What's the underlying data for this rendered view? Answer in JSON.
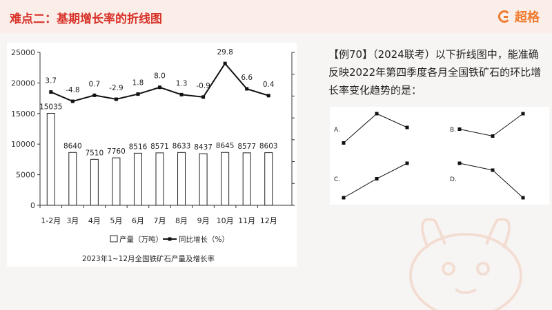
{
  "header": {
    "title": "难点二：基期增长率的折线图",
    "logo_text": "超格"
  },
  "question": {
    "text": "【例70】（2024联考）以下折线图中，能准确反映2022年第四季度各月全国铁矿石的环比增长率变化趋势的是："
  },
  "chart_data": {
    "type": "bar",
    "title": "2023年1~12月全国铁矿石产量及增长率",
    "categories": [
      "1-2月",
      "3月",
      "4月",
      "5月",
      "6月",
      "7月",
      "8月",
      "9月",
      "10月",
      "11月",
      "12月"
    ],
    "series": [
      {
        "name": "产量（万吨）",
        "type": "bar",
        "axis": "left",
        "values": [
          15035,
          8640,
          7510,
          7760,
          8516,
          8571,
          8633,
          8437,
          8645,
          8577,
          8603
        ]
      },
      {
        "name": "同比增长（%）",
        "type": "line",
        "axis": "right",
        "values": [
          3.7,
          -4.8,
          0.7,
          -2.9,
          1.8,
          8.0,
          1.3,
          -0.9,
          29.8,
          6.6,
          0.4
        ]
      }
    ],
    "left_axis": {
      "ylim": [
        0,
        25000
      ],
      "ticks": [
        0,
        5000,
        10000,
        15000,
        20000,
        25000
      ]
    },
    "right_axis": {
      "ylim": [
        -100,
        40
      ],
      "ticks": [
        -100,
        -80,
        -60,
        -40,
        -20,
        0,
        20,
        40
      ]
    },
    "legend_position": "bottom",
    "line_labels": [
      "3.7",
      "-4.8",
      "0.7",
      "-2.9",
      "1.8",
      "8.0",
      "1.3",
      "-0.9",
      "29.8",
      "6.6",
      "0.4"
    ],
    "bar_labels": [
      "15035",
      "8640",
      "7510",
      "7760",
      "8516",
      "8571",
      "8633",
      "8437",
      "8645",
      "8577",
      "8603"
    ]
  },
  "options": [
    {
      "label": "A.",
      "trend": [
        0.15,
        1.0,
        0.6
      ]
    },
    {
      "label": "B.",
      "trend": [
        0.55,
        0.35,
        1.0
      ]
    },
    {
      "label": "C.",
      "trend": [
        0.0,
        0.55,
        1.0
      ]
    },
    {
      "label": "D.",
      "trend": [
        1.0,
        0.8,
        0.0
      ]
    }
  ],
  "colors": {
    "accent": "#d8322a",
    "logo": "#f07a2e",
    "header_bg": "#fbeee8"
  }
}
